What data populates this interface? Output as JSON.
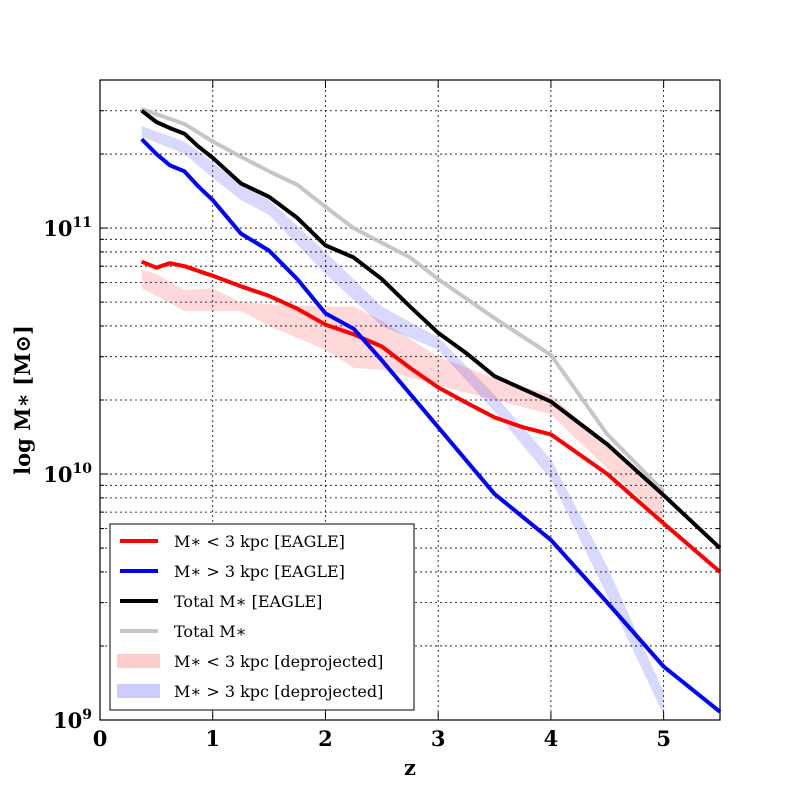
{
  "chart_data": {
    "type": "line",
    "title": "",
    "xlabel": "z",
    "ylabel": "log M∗ [M⊙]",
    "xlim": [
      0,
      5.5
    ],
    "ylim": [
      1000000000.0,
      400000000000.0
    ],
    "yscale": "log",
    "grid": true,
    "x_ticks": [
      {
        "value": 0,
        "label": "0"
      },
      {
        "value": 1,
        "label": "1"
      },
      {
        "value": 2,
        "label": "2"
      },
      {
        "value": 3,
        "label": "3"
      },
      {
        "value": 4,
        "label": "4"
      },
      {
        "value": 5,
        "label": "5"
      }
    ],
    "y_ticks": [
      {
        "value": 1000000000.0,
        "base": "10",
        "exp": "9"
      },
      {
        "value": 10000000000.0,
        "base": "10",
        "exp": "10"
      },
      {
        "value": 100000000000.0,
        "base": "10",
        "exp": "11"
      }
    ],
    "legend_position": "lower-left",
    "series": [
      {
        "name": "M∗ < 3 kpc [EAGLE]",
        "kind": "line",
        "color": "#ff0000",
        "x": [
          0.37,
          0.5,
          0.62,
          0.75,
          0.87,
          1.0,
          1.25,
          1.5,
          1.75,
          2.0,
          2.25,
          2.5,
          2.75,
          3.0,
          3.25,
          3.5,
          3.75,
          4.0,
          4.5,
          5.0,
          5.5
        ],
        "y": [
          73000000000.0,
          69000000000.0,
          72000000000.0,
          70000000000.0,
          67000000000.0,
          64000000000.0,
          58000000000.0,
          53000000000.0,
          47000000000.0,
          40500000000.0,
          37000000000.0,
          33000000000.0,
          27000000000.0,
          22500000000.0,
          19500000000.0,
          17000000000.0,
          15500000000.0,
          14500000000.0,
          10000000000.0,
          6300000000.0,
          4000000000.0
        ]
      },
      {
        "name": "M∗ > 3 kpc [EAGLE]",
        "kind": "line",
        "color": "#0000ff",
        "x": [
          0.37,
          0.5,
          0.62,
          0.75,
          0.87,
          1.0,
          1.25,
          1.5,
          1.75,
          2.0,
          2.25,
          2.5,
          3.0,
          3.5,
          4.0,
          4.5,
          5.0,
          5.5
        ],
        "y": [
          230000000000.0,
          200000000000.0,
          180000000000.0,
          170000000000.0,
          148000000000.0,
          130000000000.0,
          95000000000.0,
          81000000000.0,
          62000000000.0,
          45000000000.0,
          39000000000.0,
          29000000000.0,
          15500000000.0,
          8300000000.0,
          5400000000.0,
          3000000000.0,
          1650000000.0,
          1080000000.0
        ]
      },
      {
        "name": "Total M∗ [EAGLE]",
        "kind": "line",
        "color": "#000000",
        "x": [
          0.37,
          0.5,
          0.62,
          0.75,
          0.87,
          1.0,
          1.25,
          1.5,
          1.75,
          2.0,
          2.25,
          2.5,
          2.75,
          3.0,
          3.25,
          3.5,
          4.0,
          4.5,
          5.0,
          5.5
        ],
        "y": [
          300000000000.0,
          270000000000.0,
          255000000000.0,
          242000000000.0,
          215000000000.0,
          193000000000.0,
          152000000000.0,
          134000000000.0,
          110000000000.0,
          85000000000.0,
          76000000000.0,
          62000000000.0,
          48000000000.0,
          37500000000.0,
          31000000000.0,
          25000000000.0,
          19700000000.0,
          13200000000.0,
          8200000000.0,
          5000000000.0
        ]
      },
      {
        "name": "Total M∗",
        "kind": "line",
        "color": "#c0c0c0",
        "x": [
          0.37,
          0.75,
          1.0,
          1.25,
          1.5,
          1.75,
          2.0,
          2.25,
          2.75,
          3.0,
          3.5,
          4.0,
          4.5,
          5.0
        ],
        "y": [
          305000000000.0,
          265000000000.0,
          225000000000.0,
          195000000000.0,
          170000000000.0,
          150000000000.0,
          122000000000.0,
          100000000000.0,
          76000000000.0,
          62000000000.0,
          43000000000.0,
          30500000000.0,
          14500000000.0,
          8500000000.0
        ]
      },
      {
        "name": "M∗ < 3 kpc [deprojected]",
        "kind": "band",
        "color": "#ff0000",
        "x": [
          0.37,
          0.5,
          0.75,
          1.0,
          1.25,
          1.5,
          2.0,
          2.25,
          2.5,
          3.0,
          3.5,
          4.0,
          4.5,
          5.0
        ],
        "y_low": [
          57000000000.0,
          53000000000.0,
          46000000000.0,
          46000000000.0,
          46000000000.0,
          40000000000.0,
          32000000000.0,
          27000000000.0,
          26500000000.0,
          23000000000.0,
          20000000000.0,
          17500000000.0,
          10500000000.0,
          6500000000.0
        ],
        "y_high": [
          68000000000.0,
          65000000000.0,
          56000000000.0,
          57000000000.0,
          50000000000.0,
          49000000000.0,
          48000000000.0,
          48000000000.0,
          42000000000.0,
          30000000000.0,
          24500000000.0,
          21000000000.0,
          13000000000.0,
          8500000000.0
        ]
      },
      {
        "name": "M∗ > 3 kpc [deprojected]",
        "kind": "band",
        "color": "#0000ff",
        "x": [
          0.37,
          0.75,
          1.0,
          1.25,
          1.5,
          2.0,
          2.5,
          3.0,
          3.5,
          4.0,
          4.5,
          5.0
        ],
        "y_low": [
          235000000000.0,
          200000000000.0,
          160000000000.0,
          130000000000.0,
          113000000000.0,
          65000000000.0,
          40000000000.0,
          32000000000.0,
          18000000000.0,
          9500000000.0,
          3200000000.0,
          1050000000.0
        ],
        "y_high": [
          260000000000.0,
          225000000000.0,
          185000000000.0,
          150000000000.0,
          130000000000.0,
          80000000000.0,
          48000000000.0,
          36000000000.0,
          21000000000.0,
          11500000000.0,
          4200000000.0,
          1300000000.0
        ]
      }
    ]
  }
}
